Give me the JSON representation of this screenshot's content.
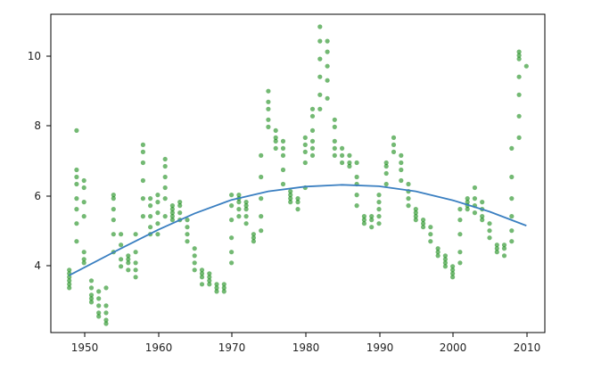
{
  "chart_data": {
    "type": "scatter",
    "title": "",
    "xlabel": "",
    "ylabel": "",
    "xlim": [
      1945.5,
      2012.5
    ],
    "ylim": [
      2.25,
      11.15
    ],
    "xticks": [
      1950,
      1960,
      1970,
      1980,
      1990,
      2000,
      2010
    ],
    "yticks": [
      4,
      6,
      8,
      10
    ],
    "xtick_labels": [
      "1950",
      "1960",
      "1970",
      "1980",
      "1990",
      "2000",
      "2010"
    ],
    "ytick_labels": [
      "4",
      "6",
      "8",
      "10"
    ],
    "grid": false,
    "scatter_color": "#008000",
    "scatter_opacity": 0.55,
    "line_color": "#3a7fc1",
    "scatter": [
      {
        "year": 1948,
        "values": [
          3.5,
          3.6,
          3.7,
          3.8,
          3.9,
          4.0
        ]
      },
      {
        "year": 1949,
        "values": [
          4.8,
          5.3,
          5.7,
          6.0,
          6.4,
          6.6,
          6.8,
          7.9
        ]
      },
      {
        "year": 1950,
        "values": [
          4.2,
          4.3,
          4.5,
          5.5,
          5.9,
          6.3,
          6.5
        ]
      },
      {
        "year": 1951,
        "values": [
          3.1,
          3.2,
          3.3,
          3.5,
          3.7
        ]
      },
      {
        "year": 1952,
        "values": [
          2.7,
          2.8,
          3.0,
          3.2,
          3.4
        ]
      },
      {
        "year": 1953,
        "values": [
          2.5,
          2.6,
          2.8,
          3.0,
          3.5
        ]
      },
      {
        "year": 1954,
        "values": [
          4.5,
          5.0,
          5.4,
          5.7,
          6.0,
          6.1
        ]
      },
      {
        "year": 1955,
        "values": [
          4.1,
          4.3,
          4.7,
          5.0
        ]
      },
      {
        "year": 1956,
        "values": [
          4.0,
          4.2,
          4.3,
          4.4
        ]
      },
      {
        "year": 1957,
        "values": [
          3.8,
          4.0,
          4.2,
          4.5,
          5.0
        ]
      },
      {
        "year": 1958,
        "values": [
          5.5,
          6.0,
          6.5,
          7.0,
          7.3,
          7.5
        ]
      },
      {
        "year": 1959,
        "values": [
          5.0,
          5.2,
          5.5,
          5.8,
          6.0
        ]
      },
      {
        "year": 1960,
        "values": [
          5.0,
          5.3,
          5.6,
          5.9,
          6.1
        ]
      },
      {
        "year": 1961,
        "values": [
          5.5,
          6.0,
          6.3,
          6.6,
          6.9,
          7.1
        ]
      },
      {
        "year": 1962,
        "values": [
          5.4,
          5.5,
          5.6,
          5.7,
          5.8
        ]
      },
      {
        "year": 1963,
        "values": [
          5.4,
          5.6,
          5.8,
          5.9
        ]
      },
      {
        "year": 1964,
        "values": [
          4.8,
          5.0,
          5.2,
          5.4
        ]
      },
      {
        "year": 1965,
        "values": [
          4.0,
          4.2,
          4.4,
          4.6
        ]
      },
      {
        "year": 1966,
        "values": [
          3.6,
          3.8,
          3.9,
          4.0
        ]
      },
      {
        "year": 1967,
        "values": [
          3.6,
          3.7,
          3.8,
          3.9
        ]
      },
      {
        "year": 1968,
        "values": [
          3.4,
          3.5,
          3.6
        ]
      },
      {
        "year": 1969,
        "values": [
          3.4,
          3.5,
          3.6
        ]
      },
      {
        "year": 1970,
        "values": [
          4.2,
          4.5,
          4.9,
          5.4,
          5.8,
          6.1
        ]
      },
      {
        "year": 1971,
        "values": [
          5.5,
          5.7,
          5.9,
          6.0,
          6.1
        ]
      },
      {
        "year": 1972,
        "values": [
          5.3,
          5.5,
          5.7,
          5.8,
          5.9
        ]
      },
      {
        "year": 1973,
        "values": [
          4.8,
          4.9,
          5.0
        ]
      },
      {
        "year": 1974,
        "values": [
          5.1,
          5.5,
          6.0,
          6.6,
          7.2
        ]
      },
      {
        "year": 1975,
        "values": [
          8.0,
          8.2,
          8.5,
          8.7,
          9.0
        ]
      },
      {
        "year": 1976,
        "values": [
          7.4,
          7.6,
          7.7,
          7.9
        ]
      },
      {
        "year": 1977,
        "values": [
          6.4,
          6.8,
          7.2,
          7.4,
          7.6
        ]
      },
      {
        "year": 1978,
        "values": [
          5.9,
          6.0,
          6.1,
          6.2
        ]
      },
      {
        "year": 1979,
        "values": [
          5.7,
          5.9,
          6.0
        ]
      },
      {
        "year": 1980,
        "values": [
          6.3,
          7.0,
          7.3,
          7.5,
          7.7
        ]
      },
      {
        "year": 1981,
        "values": [
          7.2,
          7.4,
          7.6,
          7.9,
          8.3,
          8.5
        ]
      },
      {
        "year": 1982,
        "values": [
          8.5,
          8.9,
          9.4,
          9.9,
          10.4,
          10.8
        ]
      },
      {
        "year": 1983,
        "values": [
          8.8,
          9.3,
          9.7,
          10.1,
          10.4
        ]
      },
      {
        "year": 1984,
        "values": [
          7.2,
          7.4,
          7.6,
          8.0,
          8.2
        ]
      },
      {
        "year": 1985,
        "values": [
          7.0,
          7.2,
          7.4
        ]
      },
      {
        "year": 1986,
        "values": [
          6.9,
          7.0,
          7.2
        ]
      },
      {
        "year": 1987,
        "values": [
          5.8,
          6.1,
          6.4,
          6.6,
          7.0
        ]
      },
      {
        "year": 1988,
        "values": [
          5.3,
          5.4,
          5.5
        ]
      },
      {
        "year": 1989,
        "values": [
          5.2,
          5.4,
          5.5
        ]
      },
      {
        "year": 1990,
        "values": [
          5.3,
          5.5,
          5.7,
          5.9,
          6.1
        ]
      },
      {
        "year": 1991,
        "values": [
          6.4,
          6.7,
          6.9,
          7.0
        ]
      },
      {
        "year": 1992,
        "values": [
          7.3,
          7.5,
          7.7
        ]
      },
      {
        "year": 1993,
        "values": [
          6.5,
          6.8,
          7.0,
          7.2
        ]
      },
      {
        "year": 1994,
        "values": [
          5.8,
          6.0,
          6.2,
          6.4
        ]
      },
      {
        "year": 1995,
        "values": [
          5.4,
          5.5,
          5.6,
          5.7
        ]
      },
      {
        "year": 1996,
        "values": [
          5.2,
          5.3,
          5.4
        ]
      },
      {
        "year": 1997,
        "values": [
          4.8,
          5.0,
          5.2
        ]
      },
      {
        "year": 1998,
        "values": [
          4.4,
          4.5,
          4.6
        ]
      },
      {
        "year": 1999,
        "values": [
          4.1,
          4.2,
          4.3,
          4.4
        ]
      },
      {
        "year": 2000,
        "values": [
          3.8,
          3.9,
          4.0,
          4.1
        ]
      },
      {
        "year": 2001,
        "values": [
          4.2,
          4.5,
          5.0,
          5.4,
          5.7
        ]
      },
      {
        "year": 2002,
        "values": [
          5.7,
          5.8,
          5.9,
          6.0
        ]
      },
      {
        "year": 2003,
        "values": [
          5.6,
          5.8,
          6.0,
          6.3
        ]
      },
      {
        "year": 2004,
        "values": [
          5.4,
          5.5,
          5.7,
          5.9
        ]
      },
      {
        "year": 2005,
        "values": [
          4.9,
          5.1,
          5.3
        ]
      },
      {
        "year": 2006,
        "values": [
          4.5,
          4.6,
          4.7
        ]
      },
      {
        "year": 2007,
        "values": [
          4.4,
          4.6,
          4.7
        ]
      },
      {
        "year": 2008,
        "values": [
          4.8,
          5.1,
          5.5,
          6.0,
          6.6,
          7.4
        ]
      },
      {
        "year": 2009,
        "values": [
          7.7,
          8.3,
          8.9,
          9.4,
          9.9,
          10.0,
          10.1
        ]
      },
      {
        "year": 2010,
        "values": [
          9.7
        ]
      }
    ],
    "fit_line": {
      "x": [
        1948,
        1955,
        1960,
        1965,
        1970,
        1975,
        1980,
        1985,
        1990,
        1995,
        2000,
        2005,
        2010
      ],
      "y": [
        3.85,
        4.6,
        5.12,
        5.58,
        5.96,
        6.2,
        6.33,
        6.38,
        6.34,
        6.2,
        5.95,
        5.63,
        5.24
      ]
    }
  }
}
